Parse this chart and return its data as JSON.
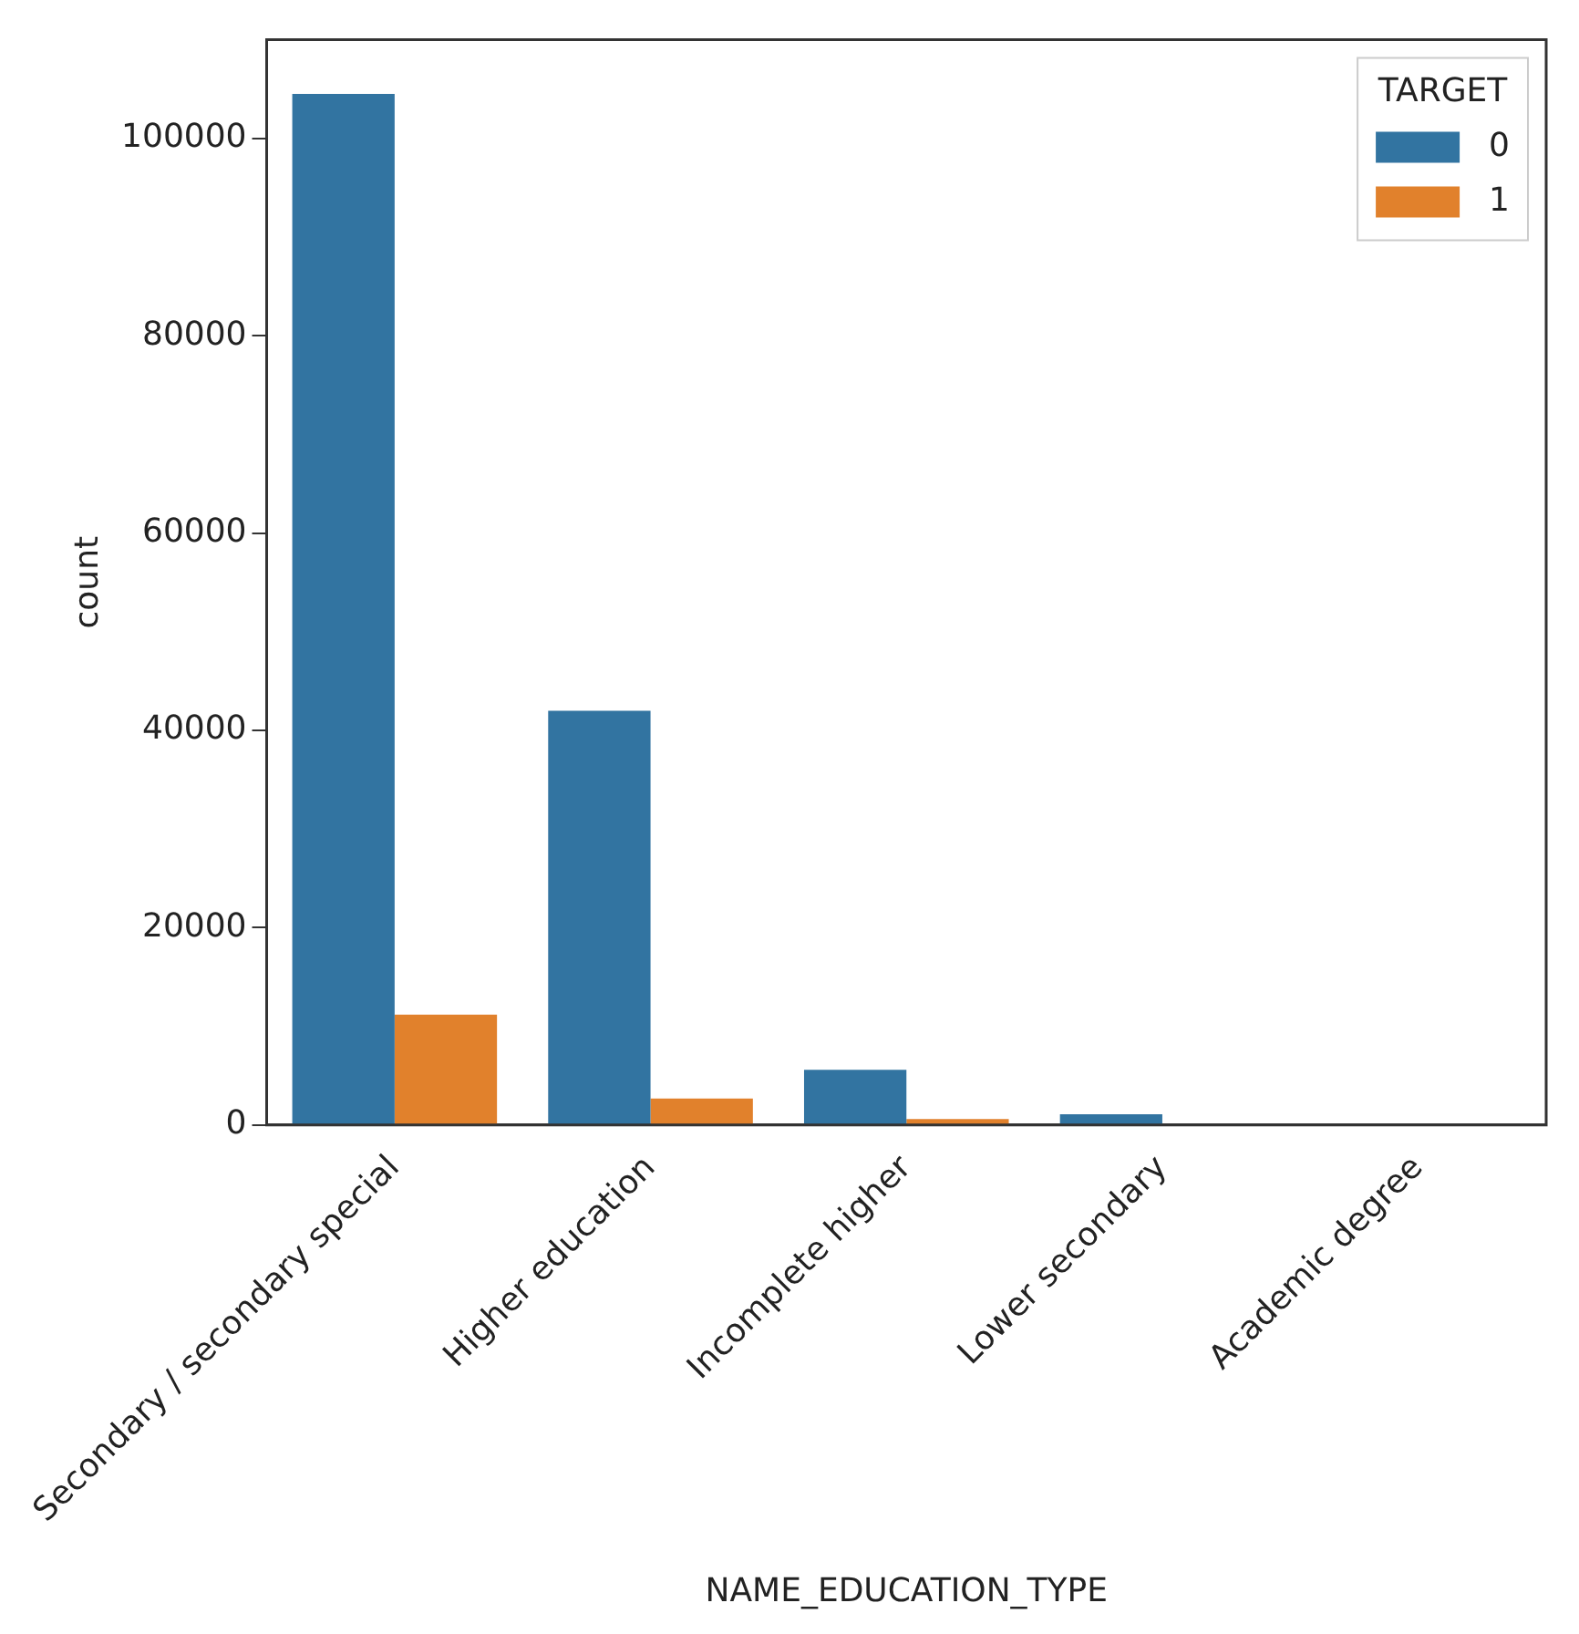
{
  "chart_data": {
    "type": "bar",
    "xlabel": "NAME_EDUCATION_TYPE",
    "ylabel": "count",
    "categories": [
      "Secondary / secondary special",
      "Higher education",
      "Incomplete higher",
      "Lower secondary",
      "Academic degree"
    ],
    "series": [
      {
        "name": "0",
        "color": "#3274a1",
        "values": [
          104500,
          42000,
          5600,
          1100,
          0
        ]
      },
      {
        "name": "1",
        "color": "#e1812c",
        "values": [
          11200,
          2700,
          600,
          0,
          0
        ]
      }
    ],
    "ylim": [
      0,
      110000
    ],
    "yticks": [
      0,
      20000,
      40000,
      60000,
      80000,
      100000
    ],
    "legend": "top right",
    "legend_title": "TARGET",
    "grid": false
  }
}
